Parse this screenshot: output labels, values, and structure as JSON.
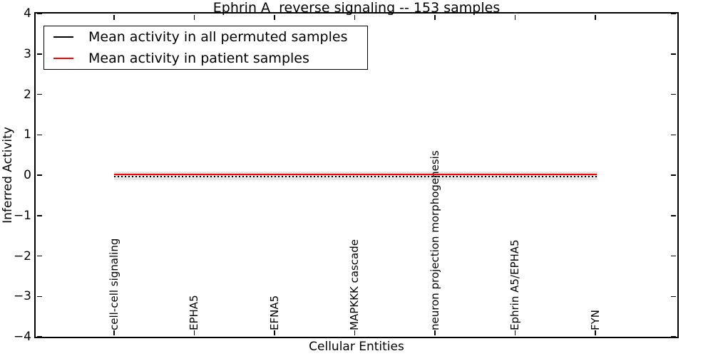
{
  "title": "Ephrin A  reverse signaling -- 153 samples",
  "axes": {
    "xlabel": "Cellular Entities",
    "ylabel": "Inferred Activity"
  },
  "legend": {
    "position": "upper left",
    "entries": [
      {
        "label": "Mean activity in all permuted samples",
        "color": "#000000"
      },
      {
        "label": "Mean activity in patient samples",
        "color": "#ff0000"
      }
    ]
  },
  "chart_data": {
    "type": "line",
    "title": "Ephrin A  reverse signaling -- 153 samples",
    "xlabel": "Cellular Entities",
    "ylabel": "Inferred Activity",
    "ylim": [
      -4,
      4
    ],
    "yticks": [
      4,
      3,
      2,
      1,
      0,
      -1,
      -2,
      -3,
      -4
    ],
    "categories": [
      "cell-cell signaling",
      "EPHA5",
      "EFNA5",
      "MAPKKK cascade",
      "neuron projection morphogenesis",
      "Ephrin A5/EPHA5",
      "FYN"
    ],
    "series": [
      {
        "name": "Mean activity in all permuted samples",
        "color": "#000000",
        "style": "dotted",
        "values": [
          -0.03,
          -0.03,
          -0.03,
          -0.03,
          -0.03,
          -0.03,
          -0.03
        ]
      },
      {
        "name": "Mean activity in patient samples",
        "color": "#ff0000",
        "style": "solid",
        "values": [
          0.02,
          0.02,
          0.02,
          0.02,
          0.02,
          0.02,
          0.02
        ]
      }
    ],
    "band": {
      "color": "#e6e6e6",
      "low": -0.12,
      "high": 0.08
    },
    "grid": false,
    "legend_position": "upper left"
  }
}
